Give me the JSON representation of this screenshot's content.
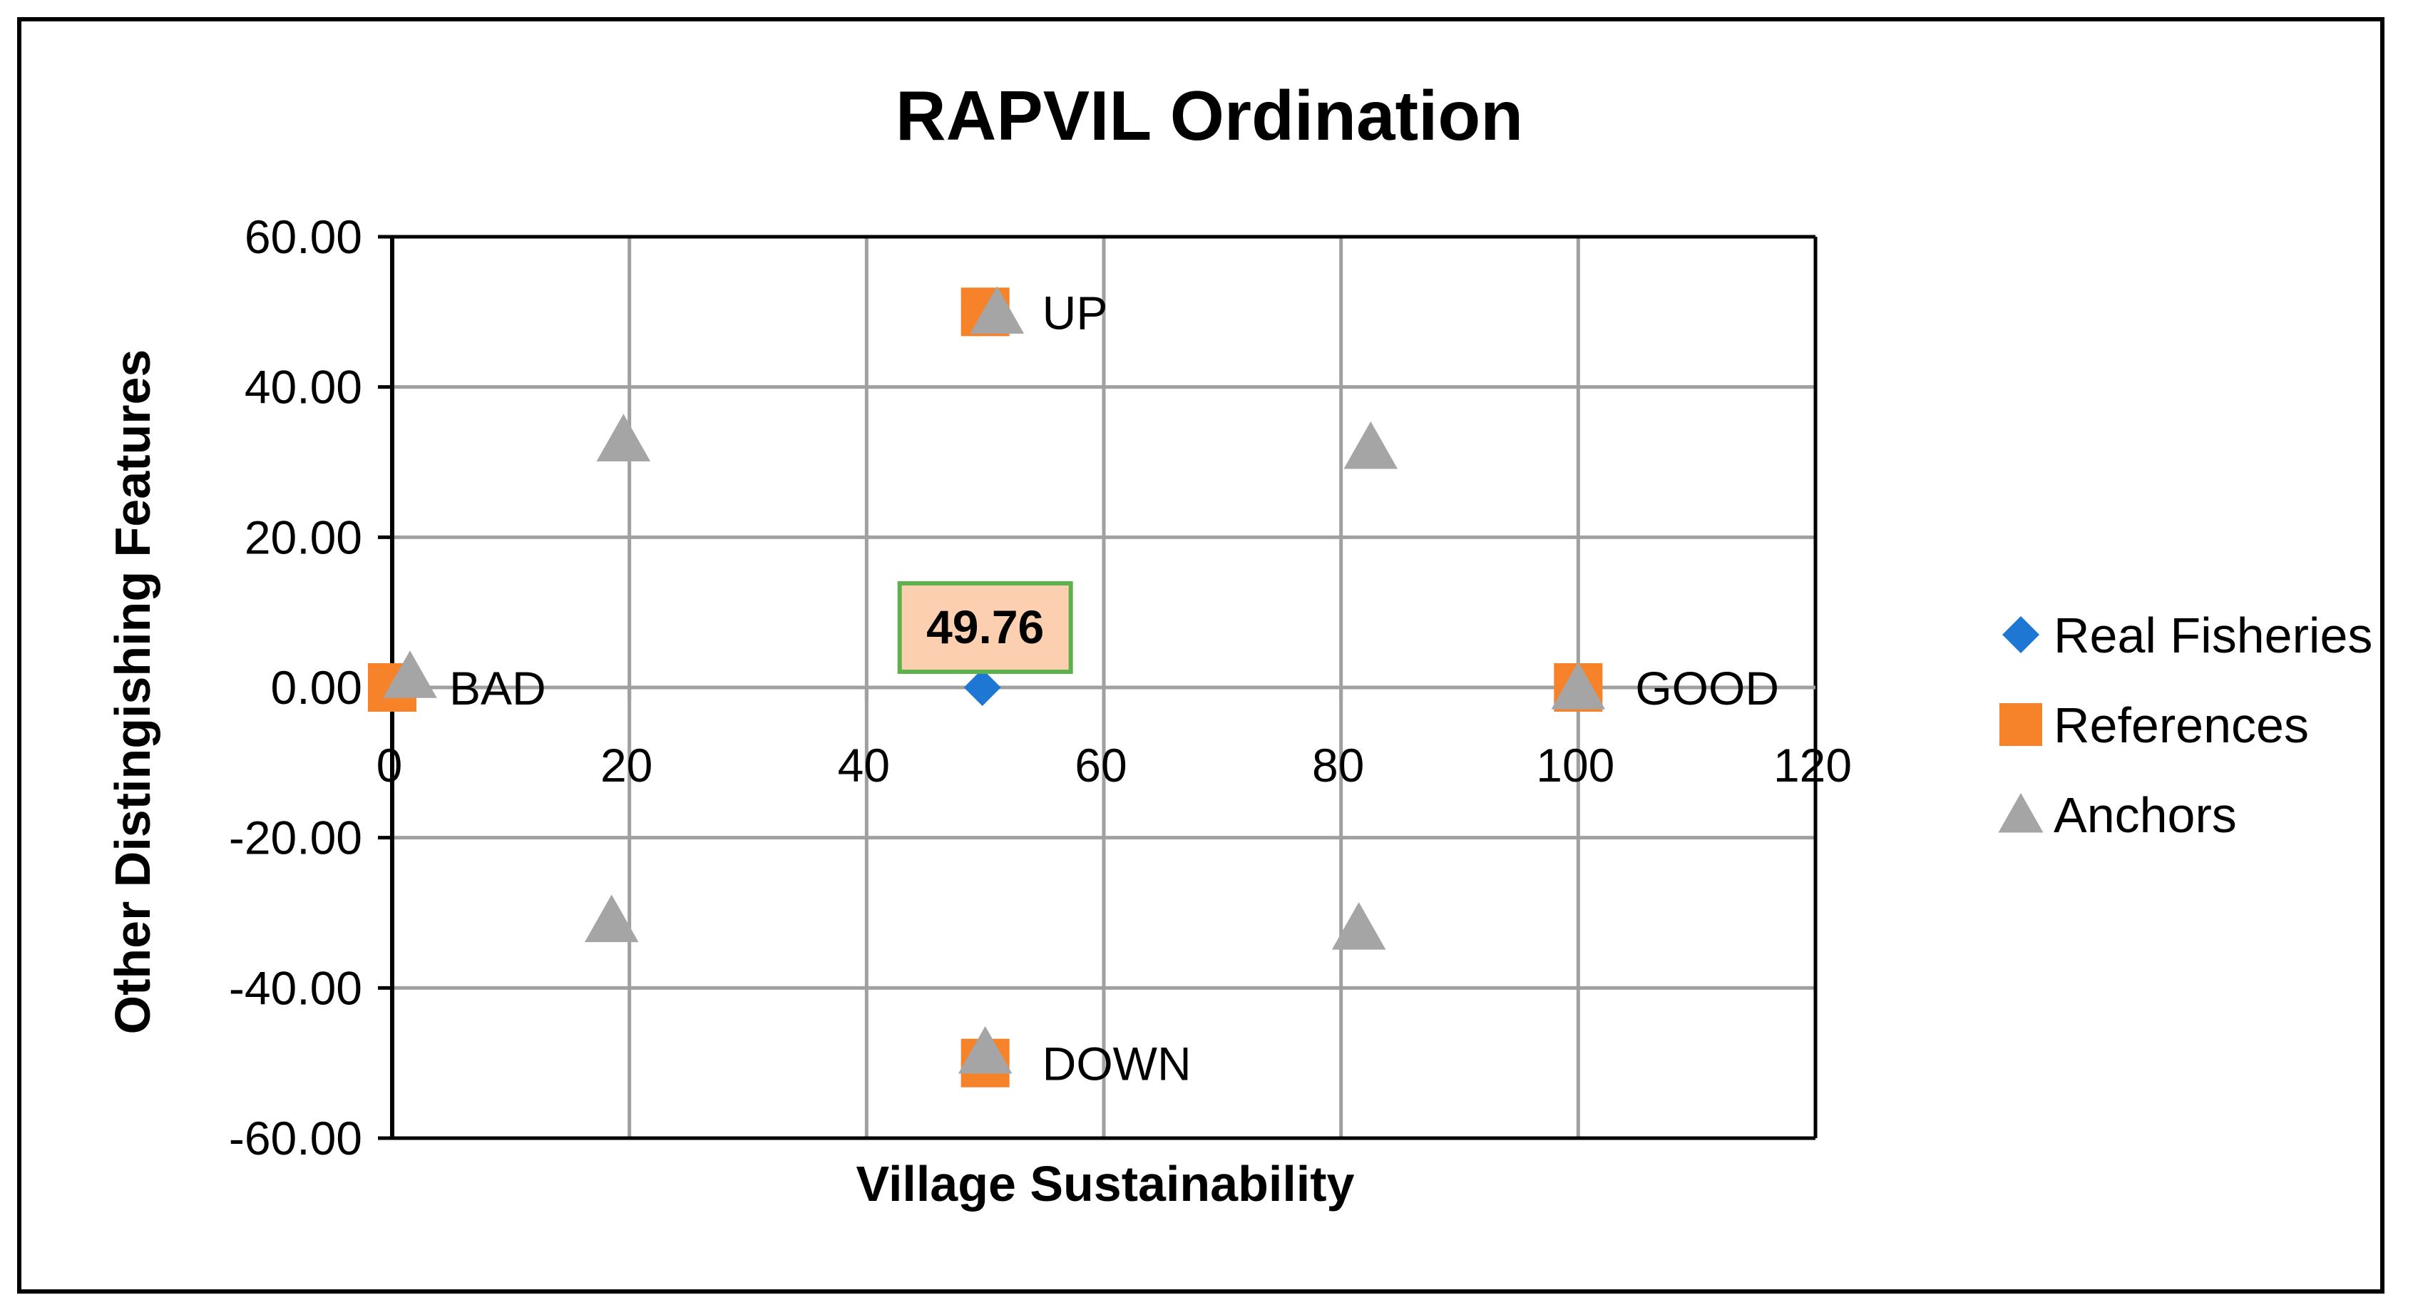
{
  "chart_data": {
    "type": "scatter",
    "title": "RAPVIL Ordination",
    "xlabel": "Village Sustainability",
    "ylabel": "Other Distingishing Features",
    "xlim": [
      0,
      120
    ],
    "ylim": [
      -60,
      60
    ],
    "x_ticks": [
      "0",
      "20",
      "40",
      "60",
      "80",
      "100",
      "120"
    ],
    "y_ticks": [
      "60.00",
      "40.00",
      "20.00",
      "0.00",
      "-20.00",
      "-40.00",
      "-60.00"
    ],
    "grid": true,
    "legend_position": "right",
    "series": [
      {
        "name": "Real Fisheries",
        "marker": "diamond",
        "color": "#1f77d4",
        "points": [
          {
            "x": 49.76,
            "y": 0
          }
        ]
      },
      {
        "name": "References",
        "marker": "square",
        "color": "#f6822a",
        "points": [
          {
            "x": 0,
            "y": 0,
            "label": "BAD"
          },
          {
            "x": 100,
            "y": 0,
            "label": "GOOD"
          },
          {
            "x": 50,
            "y": 50,
            "label": "UP"
          },
          {
            "x": 50,
            "y": -50,
            "label": "DOWN"
          }
        ]
      },
      {
        "name": "Anchors",
        "marker": "triangle",
        "color": "#a5a5a5",
        "points": [
          {
            "x": 1.5,
            "y": 1.5
          },
          {
            "x": 19.5,
            "y": 33
          },
          {
            "x": 18.5,
            "y": -31
          },
          {
            "x": 51,
            "y": 50
          },
          {
            "x": 50,
            "y": -48.5
          },
          {
            "x": 82.5,
            "y": 32
          },
          {
            "x": 81.5,
            "y": -32
          },
          {
            "x": 100,
            "y": 0
          }
        ]
      }
    ],
    "annotations": [
      {
        "text": "49.76",
        "x": 49.76,
        "y": 0,
        "fill": "#fbcfb0",
        "border": "#5cb24a"
      }
    ]
  }
}
